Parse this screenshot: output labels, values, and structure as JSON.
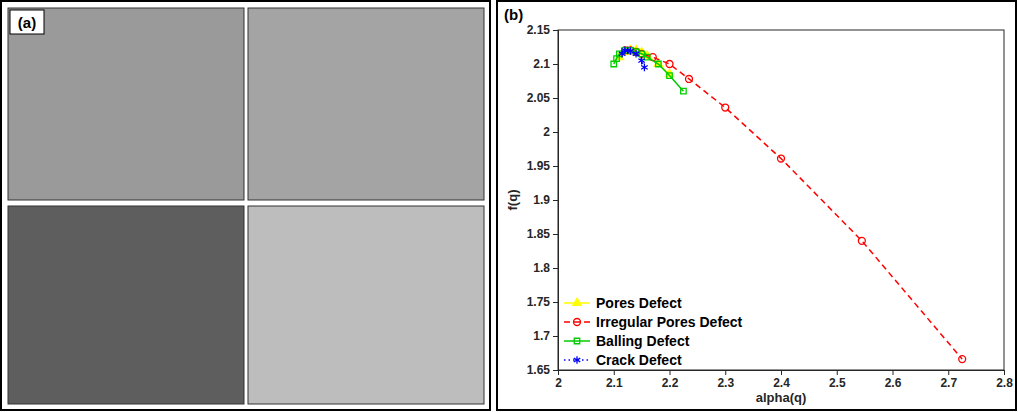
{
  "panel_a": {
    "label": "(a)"
  },
  "chart_data": {
    "type": "line",
    "annotations": [
      "(b)"
    ],
    "x_label": "alpha(q)",
    "y_label": "f(q)",
    "xlim": [
      2,
      2.8
    ],
    "xticks": [
      2,
      2.1,
      2.2,
      2.3,
      2.4,
      2.5,
      2.6,
      2.7,
      2.8
    ],
    "ylim": [
      1.65,
      2.15
    ],
    "yticks": [
      1.65,
      1.7,
      1.75,
      1.8,
      1.85,
      1.9,
      1.95,
      2,
      2.05,
      2.1,
      2.15
    ],
    "grid": false,
    "legend": "lower left",
    "series": [
      {
        "name": "Pores Defect",
        "color": "#ffff00",
        "marker": "triangle",
        "line_style": "solid",
        "x": [
          2.11,
          2.12,
          2.13,
          2.14,
          2.15,
          2.16,
          2.18,
          2.2
        ],
        "values": [
          2.11,
          2.118,
          2.12,
          2.12,
          2.117,
          2.112,
          2.1,
          2.085
        ]
      },
      {
        "name": "Irregular Pores Defect",
        "color": "#ff0000",
        "marker": "circle",
        "line_style": "dashed",
        "x": [
          2.12,
          2.13,
          2.14,
          2.15,
          2.17,
          2.2,
          2.235,
          2.3,
          2.4,
          2.545,
          2.725
        ],
        "values": [
          2.12,
          2.12,
          2.118,
          2.115,
          2.11,
          2.1,
          2.078,
          2.036,
          1.961,
          1.84,
          1.666
        ]
      },
      {
        "name": "Balling Defect",
        "color": "#00cc00",
        "marker": "square",
        "line_style": "solid",
        "x": [
          2.1,
          2.105,
          2.11,
          2.12,
          2.13,
          2.14,
          2.15,
          2.16,
          2.18,
          2.2,
          2.225
        ],
        "values": [
          2.1,
          2.108,
          2.115,
          2.12,
          2.12,
          2.118,
          2.115,
          2.11,
          2.1,
          2.083,
          2.06
        ]
      },
      {
        "name": "Crack Defect",
        "color": "#0000ff",
        "marker": "asterisk",
        "line_style": "dotted",
        "x": [
          2.115,
          2.12,
          2.125,
          2.13,
          2.14,
          2.15,
          2.155
        ],
        "values": [
          2.115,
          2.12,
          2.12,
          2.119,
          2.115,
          2.105,
          2.095
        ]
      }
    ]
  }
}
